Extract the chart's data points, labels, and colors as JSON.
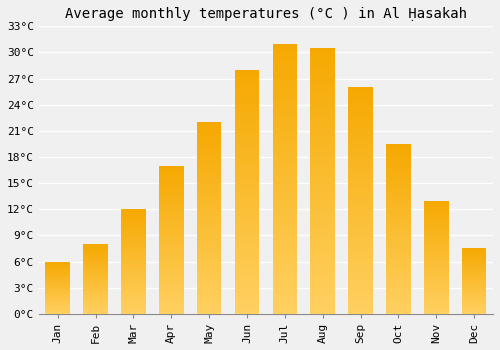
{
  "title": "Average monthly temperatures (°C ) in Al Ḥasakah",
  "months": [
    "Jan",
    "Feb",
    "Mar",
    "Apr",
    "May",
    "Jun",
    "Jul",
    "Aug",
    "Sep",
    "Oct",
    "Nov",
    "Dec"
  ],
  "values": [
    6,
    8,
    12,
    17,
    22,
    28,
    31,
    30.5,
    26,
    19.5,
    13,
    7.5
  ],
  "bar_color_top": "#F5A800",
  "bar_color_bottom": "#FFD060",
  "ylim": [
    0,
    33
  ],
  "yticks": [
    0,
    3,
    6,
    9,
    12,
    15,
    18,
    21,
    24,
    27,
    30,
    33
  ],
  "ytick_labels": [
    "0°C",
    "3°C",
    "6°C",
    "9°C",
    "12°C",
    "15°C",
    "18°C",
    "21°C",
    "24°C",
    "27°C",
    "30°C",
    "33°C"
  ],
  "background_color": "#f0f0f0",
  "grid_color": "#ffffff",
  "title_fontsize": 10,
  "tick_fontsize": 8
}
